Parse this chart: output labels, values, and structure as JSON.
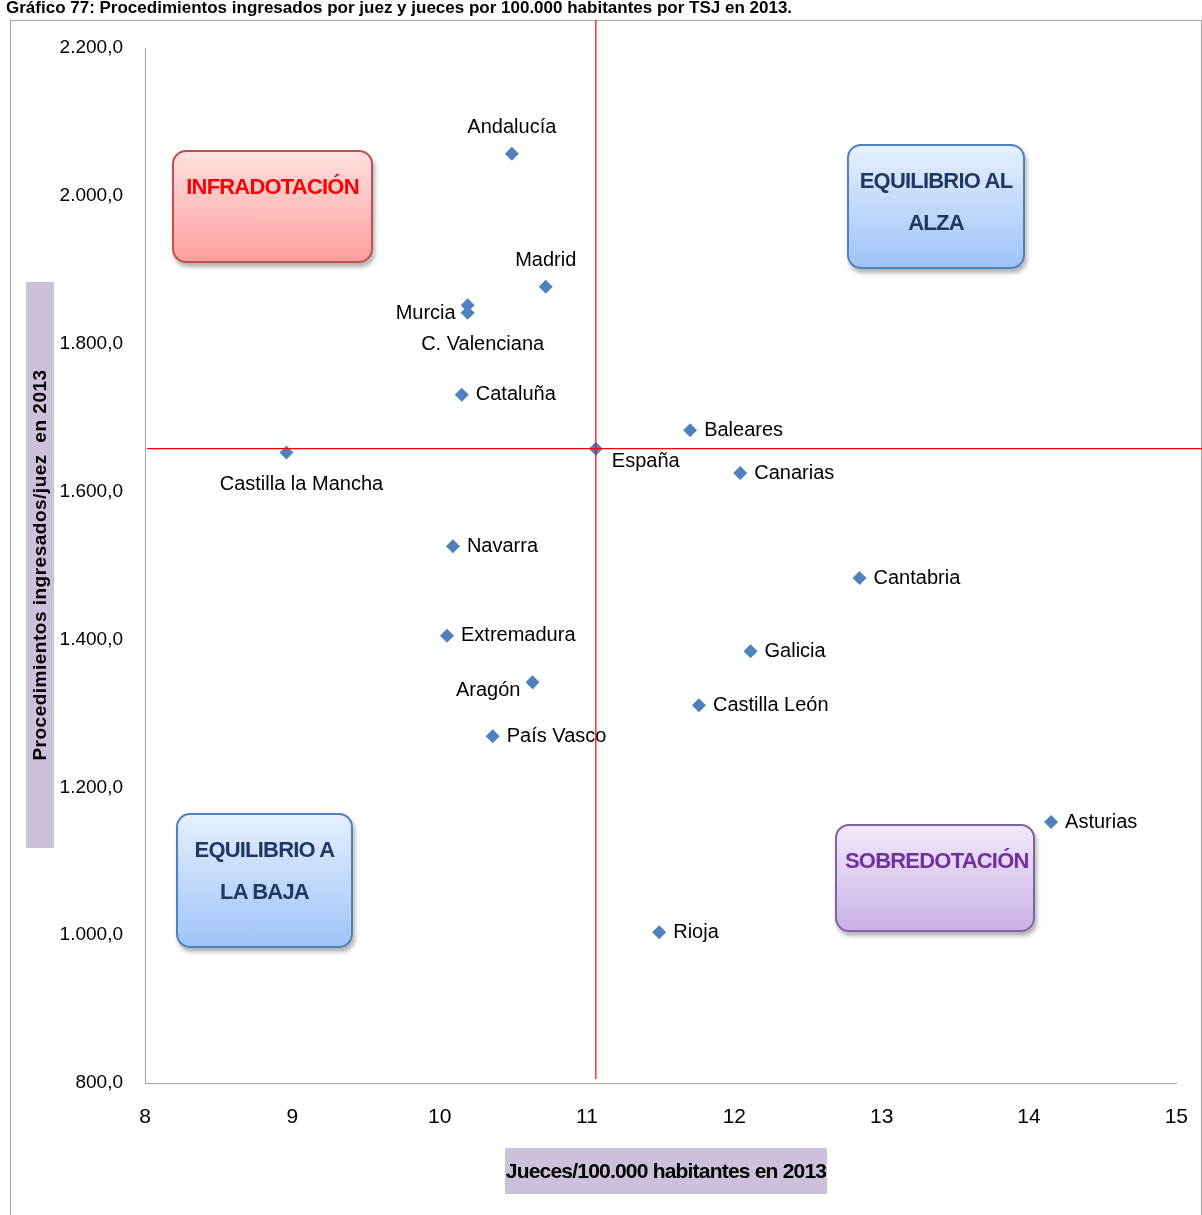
{
  "chart_data": {
    "type": "scatter",
    "title": "Gráfico 77: Procedimientos ingresados por juez y jueces por 100.000 habitantes por TSJ en 2013.",
    "xlabel": "Jueces/100.000 habitantes en 2013",
    "ylabel": "Procedimientos ingresados/juez  en 2013",
    "xlim": [
      8,
      15
    ],
    "xticks": [
      8,
      9,
      10,
      11,
      12,
      13,
      14,
      15
    ],
    "ylim": [
      800,
      2200
    ],
    "yticks": [
      {
        "value": 800,
        "label": "800,0"
      },
      {
        "value": 1000,
        "label": "1.000,0"
      },
      {
        "value": 1200,
        "label": "1.200,0"
      },
      {
        "value": 1400,
        "label": "1.400,0"
      },
      {
        "value": 1600,
        "label": "1.600,0"
      },
      {
        "value": 1800,
        "label": "1.800,0"
      },
      {
        "value": 2000,
        "label": "2.000,0"
      },
      {
        "value": 2200,
        "label": "2.200,0"
      }
    ],
    "grid": false,
    "legend": false,
    "marker": "diamond",
    "series": [
      {
        "name": "Andalucía",
        "color": "#4f81bd",
        "x": [
          10.49
        ],
        "values": [
          2057
        ]
      },
      {
        "name": "Madrid",
        "color": "#4f81bd",
        "x": [
          10.72
        ],
        "values": [
          1877
        ]
      },
      {
        "name": "Murcia",
        "color": "#4f81bd",
        "x": [
          10.19
        ],
        "values": [
          1852
        ]
      },
      {
        "name": "C. Valenciana",
        "color": "#4f81bd",
        "x": [
          10.19
        ],
        "values": [
          1842
        ]
      },
      {
        "name": "Cataluña",
        "color": "#4f81bd",
        "x": [
          10.15
        ],
        "values": [
          1731
        ]
      },
      {
        "name": "Castilla la Mancha",
        "color": "#4f81bd",
        "x": [
          8.96
        ],
        "values": [
          1653
        ]
      },
      {
        "name": "España",
        "color": "#4f81bd",
        "x": [
          11.06
        ],
        "values": [
          1658
        ]
      },
      {
        "name": "Baleares",
        "color": "#4f81bd",
        "x": [
          11.7
        ],
        "values": [
          1683
        ]
      },
      {
        "name": "Canarias",
        "color": "#4f81bd",
        "x": [
          12.04
        ],
        "values": [
          1625
        ]
      },
      {
        "name": "Navarra",
        "color": "#4f81bd",
        "x": [
          10.09
        ],
        "values": [
          1526
        ]
      },
      {
        "name": "Cantabria",
        "color": "#4f81bd",
        "x": [
          12.85
        ],
        "values": [
          1483
        ]
      },
      {
        "name": "Extremadura",
        "color": "#4f81bd",
        "x": [
          10.05
        ],
        "values": [
          1405
        ]
      },
      {
        "name": "Galicia",
        "color": "#4f81bd",
        "x": [
          12.11
        ],
        "values": [
          1384
        ]
      },
      {
        "name": "Aragón",
        "color": "#4f81bd",
        "x": [
          10.63
        ],
        "values": [
          1342
        ]
      },
      {
        "name": "Castilla León",
        "color": "#4f81bd",
        "x": [
          11.76
        ],
        "values": [
          1311
        ]
      },
      {
        "name": "País Vasco",
        "color": "#4f81bd",
        "x": [
          10.36
        ],
        "values": [
          1269
        ]
      },
      {
        "name": "Asturias",
        "color": "#4f81bd",
        "x": [
          14.15
        ],
        "values": [
          1153
        ]
      },
      {
        "name": "Rioja",
        "color": "#4f81bd",
        "x": [
          11.49
        ],
        "values": [
          1004
        ]
      }
    ],
    "ref_lines": [
      {
        "axis": "x",
        "value": 11.06,
        "color": "#ff0000"
      },
      {
        "axis": "y",
        "value": 1658,
        "color": "#ff0000"
      }
    ],
    "annotations": [
      "INFRADOTACIÓN",
      "EQUILIBRIO AL ALZA",
      "EQUILIBRIO A LA BAJA",
      "SOBREDOTACIÓN"
    ]
  }
}
